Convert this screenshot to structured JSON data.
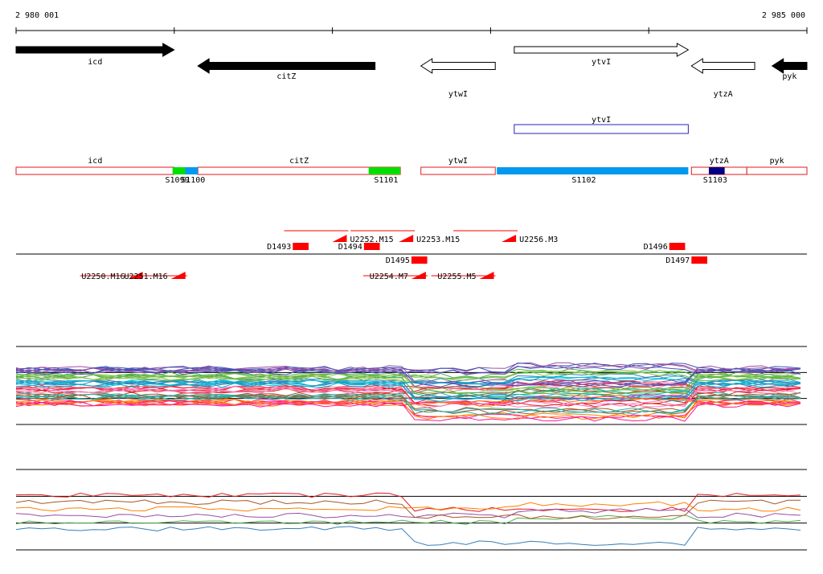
{
  "coordinates": {
    "start_label": "2 980 001",
    "end_label": "2 985 000",
    "start": 2980001,
    "end": 2985000
  },
  "colors": {
    "gene_fill": "#000000",
    "segment_border": "#e41a1c",
    "segment_green": "#00e000",
    "segment_blue": "#0099ee",
    "segment_navy": "#000080",
    "transcript_border": "#2222bb",
    "marker_red": "#ff0000"
  },
  "genes": [
    {
      "name": "icd",
      "start": 2980001,
      "end": 2981000,
      "strand": "+",
      "filled": true
    },
    {
      "name": "citZ",
      "start": 2981150,
      "end": 2982270,
      "strand": "-",
      "filled": true
    },
    {
      "name": "ytwI",
      "start": 2982560,
      "end": 2983030,
      "strand": "-",
      "filled": false
    },
    {
      "name": "ytvI",
      "start": 2983150,
      "end": 2984250,
      "strand": "+",
      "filled": false
    },
    {
      "name": "ytzA",
      "start": 2984270,
      "end": 2984670,
      "strand": "-",
      "filled": false
    },
    {
      "name": "pyk",
      "start": 2984780,
      "end": 2985000,
      "strand": "-",
      "filled": true
    }
  ],
  "transcript": {
    "label": "ytvI",
    "start": 2983150,
    "end": 2984250
  },
  "segments": [
    {
      "label": "icd",
      "start": 2980001,
      "end": 2981000,
      "fill": "none"
    },
    {
      "label": "citZ",
      "start": 2981150,
      "end": 2982430,
      "fill": "none"
    },
    {
      "label": "ytwI",
      "start": 2982560,
      "end": 2983030,
      "fill": "none"
    },
    {
      "label": "ytzA",
      "start": 2984270,
      "end": 2984620,
      "fill": "none"
    },
    {
      "label": "pyk",
      "start": 2984620,
      "end": 2985000,
      "fill": "none"
    }
  ],
  "segment_blocks": [
    {
      "start": 2980990,
      "end": 2981080,
      "fill": "green"
    },
    {
      "start": 2981070,
      "end": 2981150,
      "fill": "blue"
    },
    {
      "start": 2982230,
      "end": 2982430,
      "fill": "green"
    },
    {
      "start": 2983040,
      "end": 2984250,
      "fill": "blue"
    },
    {
      "start": 2984380,
      "end": 2984480,
      "fill": "navy"
    }
  ],
  "segment_labels": [
    {
      "text": "S1099",
      "pos": 2981020
    },
    {
      "text": "S1100",
      "pos": 2981120
    },
    {
      "text": "S1101",
      "pos": 2982340
    },
    {
      "text": "S1102",
      "pos": 2983590
    },
    {
      "text": "S1103",
      "pos": 2984420
    }
  ],
  "markers_top": [
    {
      "label": "D1493",
      "pos": 2981750,
      "kind": "box",
      "width": 100
    },
    {
      "label": "D1494",
      "pos": 2982200,
      "kind": "box",
      "width": 100
    },
    {
      "label": "U2252.M15",
      "pos": 2982000,
      "kind": "flag"
    },
    {
      "label": "U2253.M15",
      "pos": 2982420,
      "kind": "flag"
    },
    {
      "label": "U2256.M3",
      "pos": 2983070,
      "kind": "flag"
    },
    {
      "label": "D1496",
      "pos": 2984130,
      "kind": "box",
      "width": 100
    }
  ],
  "markers_bottom": [
    {
      "label": "U2250.M16",
      "pos": 2980710,
      "kind": "flag"
    },
    {
      "label": "U2251.M16",
      "pos": 2980980,
      "kind": "flag"
    },
    {
      "label": "U2254.M7",
      "pos": 2982500,
      "kind": "flag"
    },
    {
      "label": "D1495",
      "pos": 2982500,
      "kind": "box",
      "width": 100
    },
    {
      "label": "U2255.M5",
      "pos": 2982930,
      "kind": "flag"
    },
    {
      "label": "D1497",
      "pos": 2984270,
      "kind": "box",
      "width": 100
    }
  ],
  "expression_panels": [
    {
      "profile_count": 48
    },
    {
      "profile_count": 6
    }
  ]
}
